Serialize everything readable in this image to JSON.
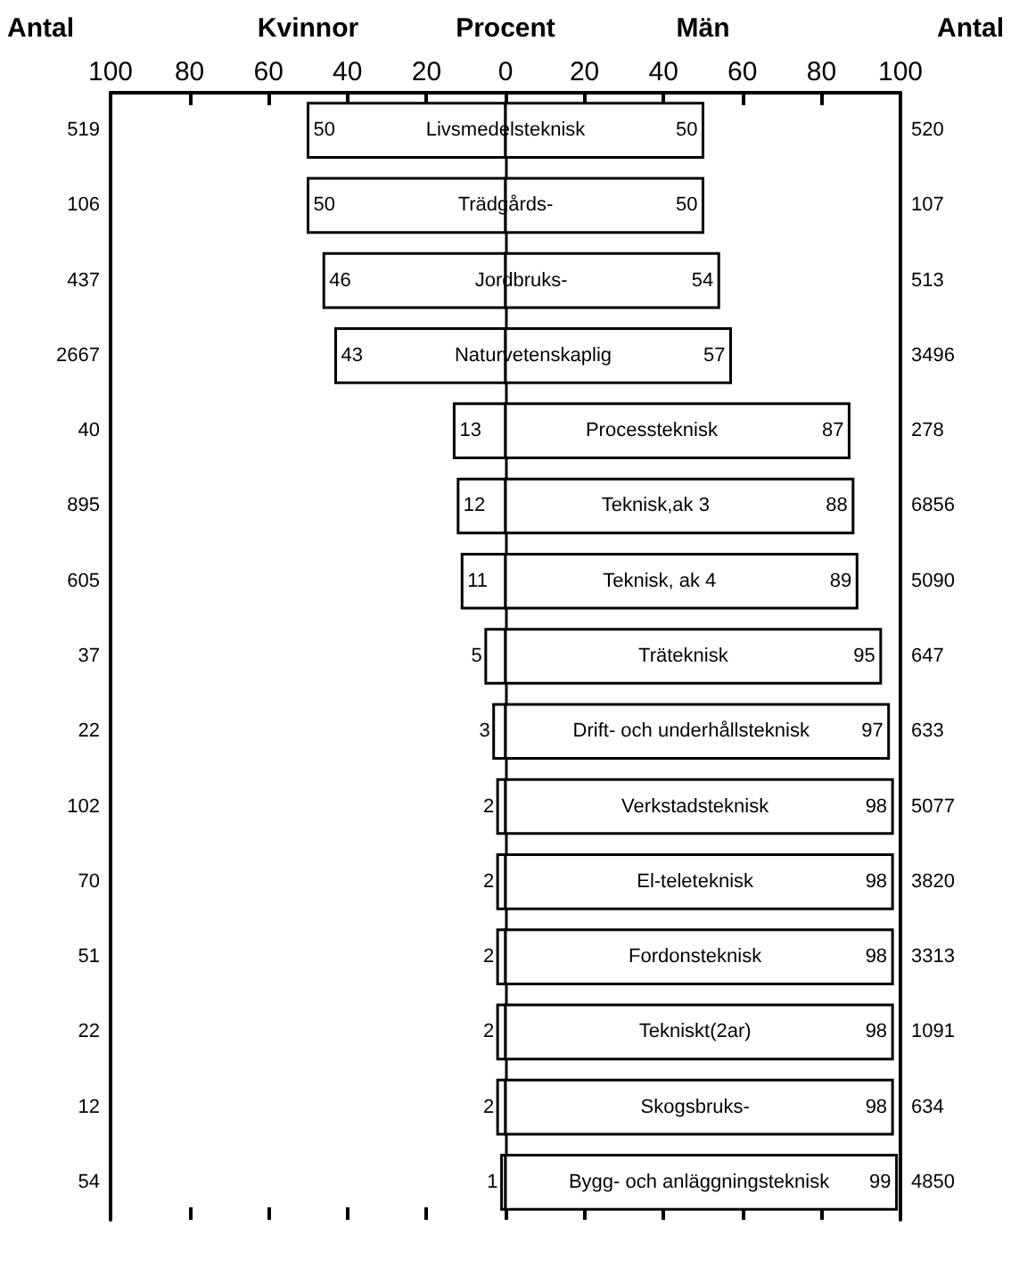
{
  "chart_data": {
    "type": "bar",
    "orientation": "horizontal",
    "xlabel": "Procent",
    "ylabel": "Antal",
    "y2label": "Antal",
    "categories": [
      "Livsmedelsteknisk",
      "Trädgårds-",
      "Jordbruks-",
      "Naturvetenskaplig",
      "Processteknisk",
      "Teknisk,ak 3",
      "Teknisk, ak 4",
      "Träteknisk",
      "Drift- och underhållsteknisk",
      "Verkstadsteknisk",
      "El-teleteknisk",
      "Fordonsteknisk",
      "Tekniskt(2ar)",
      "Skogsbruks-",
      "Bygg- och anläggningsteknisk"
    ],
    "series": [
      {
        "name": "Kvinnor",
        "color": "#ffffff",
        "base": [
          -50,
          -50,
          -46,
          -43,
          -13,
          -12,
          -11,
          -5,
          -3,
          -2,
          -2,
          -2,
          -2,
          -2,
          -1
        ],
        "values": [
          50,
          50,
          46,
          43,
          13,
          12,
          11,
          5,
          3,
          2,
          2,
          2,
          2,
          2,
          1
        ]
      },
      {
        "name": "Män",
        "color": "#ffffff",
        "values": [
          50,
          50,
          54,
          57,
          87,
          88,
          89,
          95,
          97,
          98,
          98,
          98,
          98,
          98,
          99
        ]
      }
    ],
    "data_labels": true,
    "xlim": [
      -100,
      100
    ],
    "xticks": [
      {
        "value": -100,
        "label": "100"
      },
      {
        "value": -80,
        "label": "80"
      },
      {
        "value": -60,
        "label": "60"
      },
      {
        "value": -40,
        "label": "40"
      },
      {
        "value": -20,
        "label": "20"
      },
      0,
      20,
      40,
      60,
      80,
      100
    ],
    "ref_lines": [
      {
        "axis": "x",
        "value": 0,
        "color": "#000000"
      }
    ],
    "annotations": [
      "519",
      "106",
      "437",
      "2667",
      "40",
      "895",
      "605",
      "37",
      "22",
      "102",
      "70",
      "51",
      "22",
      "12",
      "54",
      "520",
      "107",
      "513",
      "3496",
      "278",
      "6856",
      "5090",
      "647",
      "633",
      "5077",
      "3820",
      "3313",
      "1091",
      "634",
      "4850"
    ]
  }
}
